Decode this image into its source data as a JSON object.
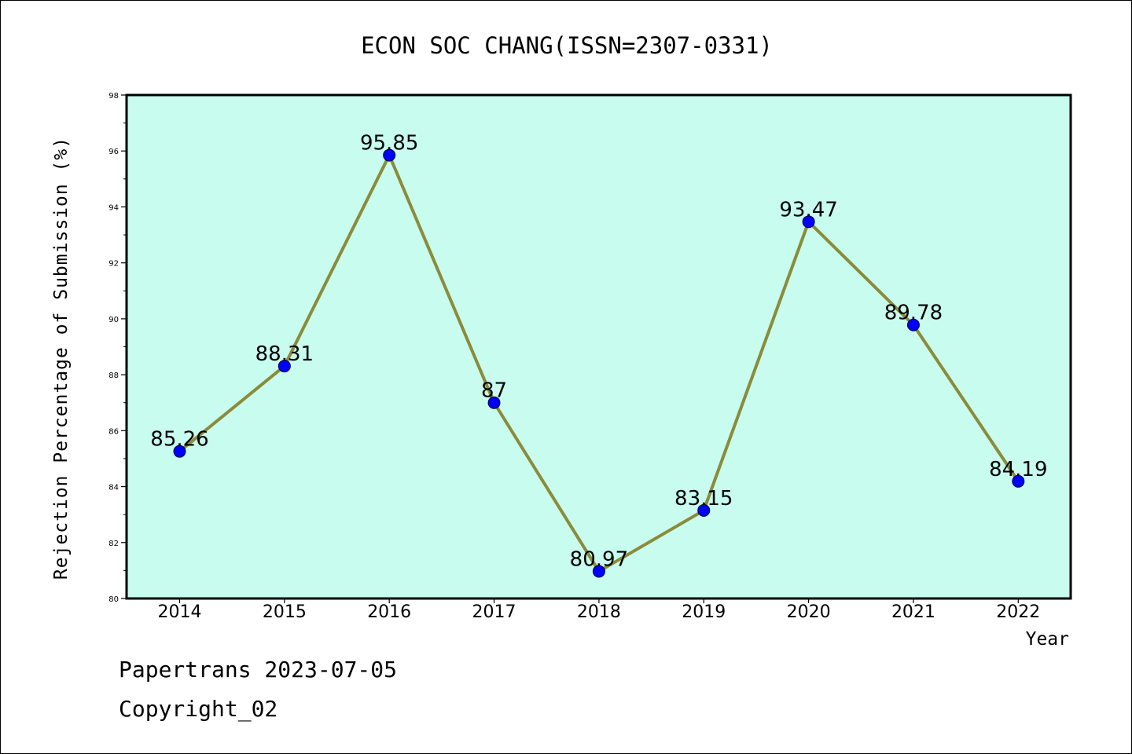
{
  "chart_data": {
    "type": "line",
    "title": "ECON SOC CHANG(ISSN=2307-0331)",
    "xlabel": "Year",
    "ylabel": "Rejection Percentage of Submission (%)",
    "categories": [
      "2014",
      "2015",
      "2016",
      "2017",
      "2018",
      "2019",
      "2020",
      "2021",
      "2022"
    ],
    "values": [
      85.26,
      88.31,
      95.85,
      87,
      80.97,
      83.15,
      93.47,
      89.78,
      84.19
    ],
    "data_labels": [
      "85.26",
      "88.31",
      "95.85",
      "87",
      "80.97",
      "83.15",
      "93.47",
      "89.78",
      "84.19"
    ],
    "ylim": [
      80,
      98
    ],
    "yticks": [
      "80",
      "82",
      "84",
      "86",
      "88",
      "90",
      "92",
      "94",
      "96",
      "98"
    ],
    "grid": false,
    "colors": {
      "plot_background": "#c7fcee",
      "line": "#8b8b3a",
      "marker": "#0000ff"
    }
  },
  "footer": {
    "line1": "Papertrans 2023-07-05",
    "line2": "Copyright_02"
  }
}
